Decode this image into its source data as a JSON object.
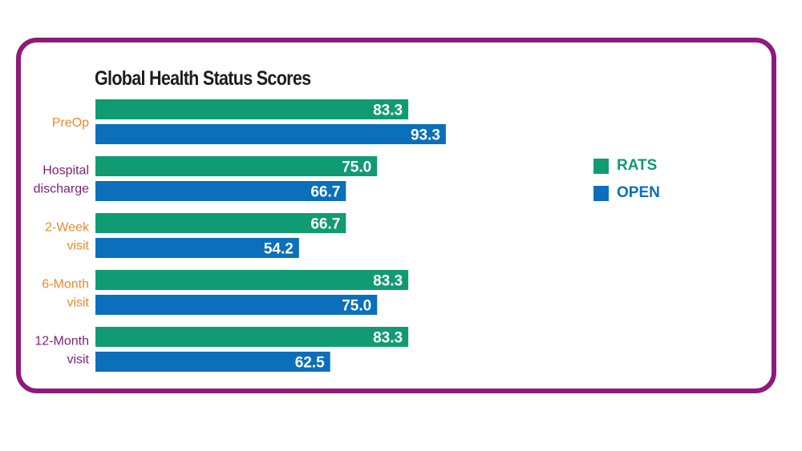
{
  "chart_data": {
    "type": "bar",
    "orientation": "horizontal",
    "title": "Global Health Status Scores",
    "categories": [
      [
        "PreOp"
      ],
      [
        "Hospital",
        "discharge"
      ],
      [
        "2-Week",
        "visit"
      ],
      [
        "6-Month",
        "visit"
      ],
      [
        "12-Month",
        "visit"
      ]
    ],
    "category_colors": [
      "#f0892a",
      "#7f1f78",
      "#f0892a",
      "#f0892a",
      "#7f1f78"
    ],
    "series": [
      {
        "name": "RATS",
        "color": "#119b73",
        "values": [
          83.3,
          75.0,
          66.7,
          83.3,
          83.3
        ],
        "labels": [
          "83.3",
          "75.0",
          "66.7",
          "83.3",
          "83.3"
        ]
      },
      {
        "name": "OPEN",
        "color": "#0b6fbb",
        "values": [
          93.3,
          66.7,
          54.2,
          75.0,
          62.5
        ],
        "labels": [
          "93.3",
          "66.7",
          "54.2",
          "75.0",
          "62.5"
        ]
      }
    ],
    "xlim": [
      0,
      100
    ],
    "grid": false,
    "legend": "right",
    "xlabel": "",
    "ylabel": ""
  },
  "colors": {
    "frame": "#8e1a7c"
  }
}
